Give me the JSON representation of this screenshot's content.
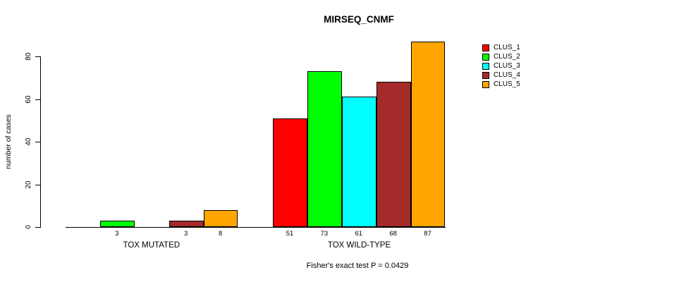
{
  "title": "MIRSEQ_CNMF",
  "y_axis_label": "number of cases",
  "caption": "Fisher's exact test P = 0.0429",
  "chart_data": {
    "type": "bar",
    "title": "MIRSEQ_CNMF",
    "ylabel": "number of cases",
    "xlabel": "",
    "categories": [
      "TOX MUTATED",
      "TOX WILD-TYPE"
    ],
    "series": [
      {
        "name": "CLUS_1",
        "color": "#FF0000",
        "values": [
          0,
          51
        ]
      },
      {
        "name": "CLUS_2",
        "color": "#00FF00",
        "values": [
          3,
          73
        ]
      },
      {
        "name": "CLUS_3",
        "color": "#00FFFF",
        "values": [
          0,
          61
        ]
      },
      {
        "name": "CLUS_4",
        "color": "#A52A2A",
        "values": [
          3,
          68
        ]
      },
      {
        "name": "CLUS_5",
        "color": "#FFA500",
        "values": [
          8,
          87
        ]
      }
    ],
    "yticks": [
      0,
      20,
      40,
      60,
      80
    ],
    "ylim": [
      0,
      88
    ],
    "grid": false,
    "bar_value_labels_shown": true,
    "zero_value_bars_hidden": true,
    "legend_position": "right-outside",
    "annotation": "Fisher's exact test P = 0.0429"
  }
}
